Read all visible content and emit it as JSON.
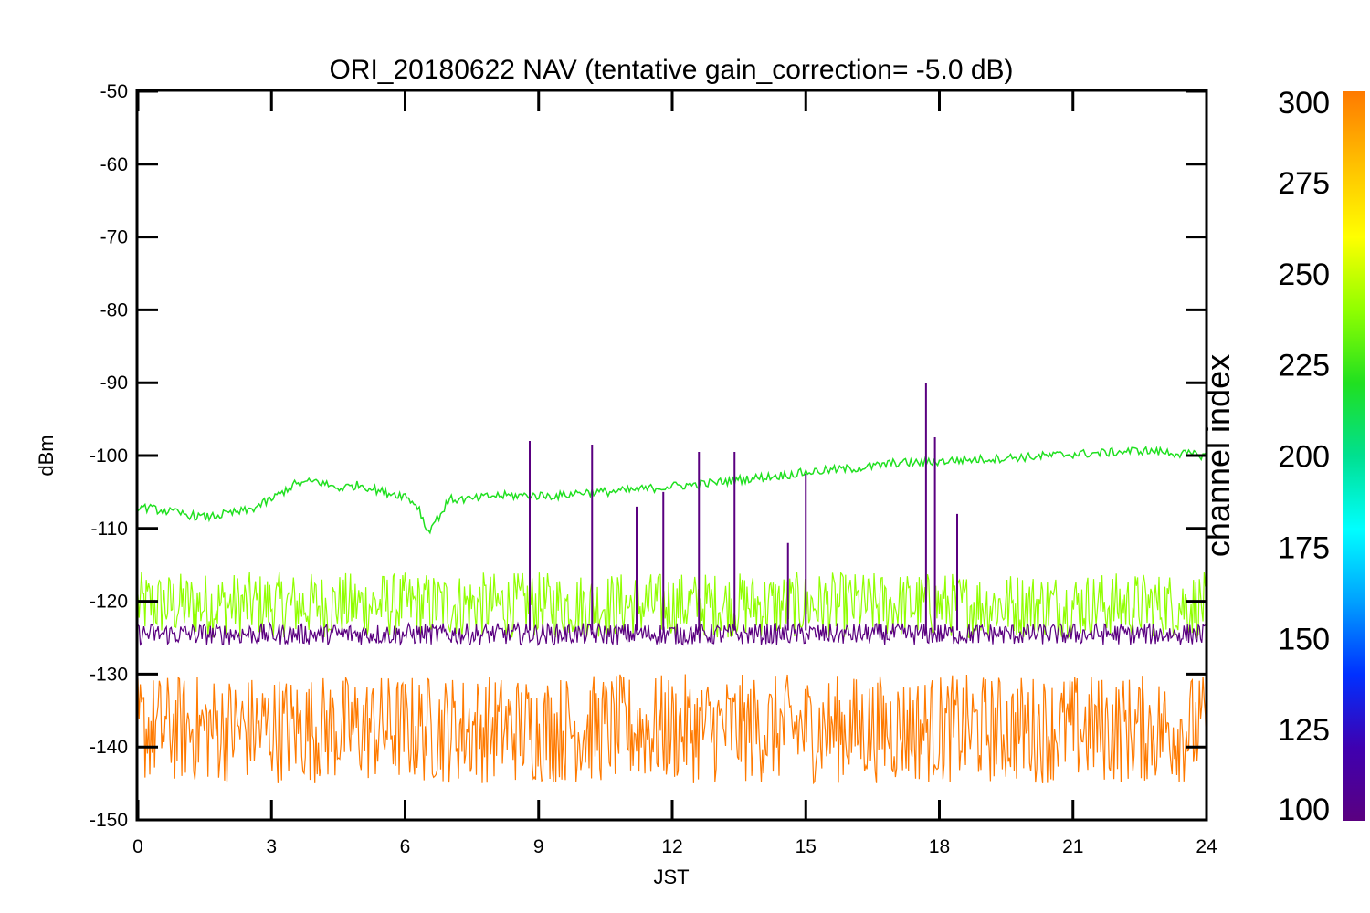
{
  "chart_data": {
    "type": "line",
    "title": "ORI_20180622 NAV (tentative gain_correction= -5.0 dB)",
    "xlabel": "JST",
    "ylabel": "dBm",
    "xlim": [
      0,
      24
    ],
    "ylim": [
      -150,
      -50
    ],
    "xticks": [
      "0",
      "3",
      "6",
      "9",
      "12",
      "15",
      "18",
      "21",
      "24"
    ],
    "yticks": [
      "-50",
      "-60",
      "-70",
      "-80",
      "-90",
      "-100",
      "-110",
      "-120",
      "-130",
      "-140",
      "-150"
    ],
    "grid": false,
    "colorbar": {
      "label": "channel index",
      "range": [
        100,
        300
      ],
      "ticks": [
        "300",
        "275",
        "250",
        "225",
        "200",
        "175",
        "150",
        "125",
        "100"
      ],
      "colormap": [
        "#5a0080",
        "#3f00b0",
        "#0030ff",
        "#00a0ff",
        "#00ffff",
        "#00e090",
        "#20e020",
        "#90ff00",
        "#ffff00",
        "#ffc000",
        "#ff7a00"
      ]
    },
    "series": [
      {
        "channel": 245,
        "color": "#20e020",
        "x": [
          0,
          0.5,
          1,
          1.5,
          2,
          2.5,
          3,
          3.5,
          4,
          4.5,
          5,
          5.5,
          6,
          6.3,
          6.5,
          6.8,
          7,
          7.5,
          8,
          8.5,
          9,
          9.5,
          10,
          10.5,
          11,
          11.5,
          12,
          12.5,
          13,
          13.5,
          14,
          14.5,
          15,
          15.5,
          16,
          16.5,
          17,
          17.5,
          18,
          18.5,
          19,
          19.5,
          20,
          20.5,
          21,
          21.5,
          22,
          22.5,
          23,
          23.5,
          24
        ],
        "y": [
          -107,
          -107.5,
          -108,
          -108.5,
          -108,
          -107.5,
          -106,
          -104,
          -103.5,
          -104.5,
          -104,
          -105,
          -105.5,
          -107,
          -110.5,
          -108,
          -106,
          -106,
          -105.5,
          -105.5,
          -105.5,
          -105.5,
          -105,
          -105,
          -104.8,
          -104.5,
          -104.2,
          -104,
          -103.7,
          -103.3,
          -103,
          -102.7,
          -102.3,
          -102,
          -101.8,
          -101.5,
          -101,
          -101,
          -100.8,
          -100.6,
          -100.5,
          -100.3,
          -100.2,
          -100,
          -99.8,
          -99.7,
          -99.5,
          -99.3,
          -99.5,
          -99.8,
          -100
        ]
      },
      {
        "channel": 260,
        "color": "#90ff00",
        "band": [
          -125,
          -116
        ]
      },
      {
        "channel": 290,
        "color": "#ff7a00",
        "band": [
          -145,
          -130
        ]
      },
      {
        "channel": 120,
        "color": "#5a0080",
        "band": [
          -126,
          -123
        ]
      }
    ],
    "spikes": [
      {
        "x": 8.8,
        "y": -98,
        "color": "#5a0080"
      },
      {
        "x": 10.2,
        "y": -98.5,
        "color": "#5a0080"
      },
      {
        "x": 11.2,
        "y": -107,
        "color": "#5a0080"
      },
      {
        "x": 11.8,
        "y": -105,
        "color": "#5a0080"
      },
      {
        "x": 12.6,
        "y": -99.5,
        "color": "#5a0080"
      },
      {
        "x": 13.4,
        "y": -99.5,
        "color": "#5a0080"
      },
      {
        "x": 14.6,
        "y": -112,
        "color": "#5a0080"
      },
      {
        "x": 15.0,
        "y": -102.5,
        "color": "#5a0080"
      },
      {
        "x": 17.7,
        "y": -90,
        "color": "#5a0080"
      },
      {
        "x": 17.9,
        "y": -97.5,
        "color": "#5a0080"
      },
      {
        "x": 18.4,
        "y": -108,
        "color": "#5a0080"
      }
    ]
  }
}
